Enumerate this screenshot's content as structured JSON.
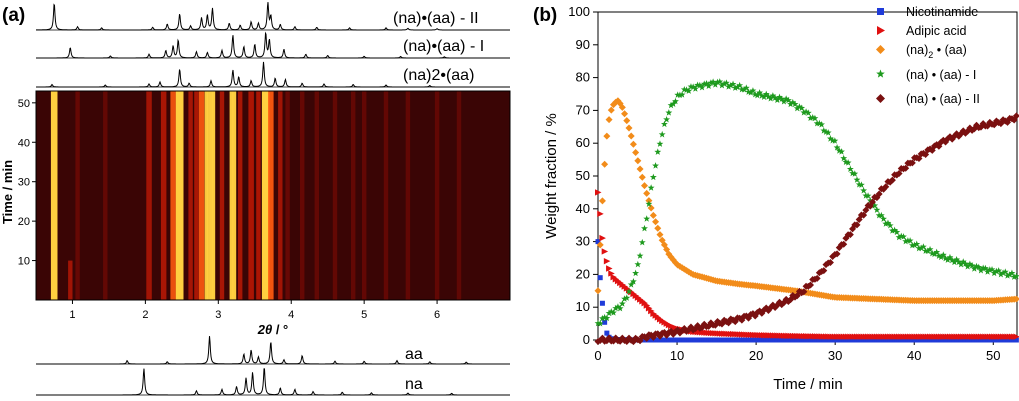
{
  "panel_a": {
    "label": "(a)",
    "top_patterns": [
      {
        "label": "(na)•(aa) - II",
        "peaks": [
          [
            0.75,
            1.0
          ],
          [
            1.07,
            0.12
          ],
          [
            1.4,
            0.08
          ],
          [
            2.1,
            0.1
          ],
          [
            2.3,
            0.22
          ],
          [
            2.47,
            0.6
          ],
          [
            2.62,
            0.15
          ],
          [
            2.77,
            0.45
          ],
          [
            2.85,
            0.55
          ],
          [
            2.92,
            0.8
          ],
          [
            3.15,
            0.25
          ],
          [
            3.3,
            0.18
          ],
          [
            3.45,
            0.3
          ],
          [
            3.55,
            0.25
          ],
          [
            3.68,
            1.0
          ],
          [
            3.72,
            0.5
          ],
          [
            3.85,
            0.2
          ],
          [
            4.05,
            0.12
          ],
          [
            4.35,
            0.1
          ],
          [
            4.8,
            0.08
          ],
          [
            5.3,
            0.08
          ],
          [
            5.6,
            0.06
          ],
          [
            6.0,
            0.05
          ]
        ]
      },
      {
        "label": "(na)•(aa) - I",
        "peaks": [
          [
            0.97,
            0.42
          ],
          [
            1.52,
            0.08
          ],
          [
            2.05,
            0.15
          ],
          [
            2.28,
            0.3
          ],
          [
            2.38,
            0.48
          ],
          [
            2.45,
            0.72
          ],
          [
            2.7,
            0.25
          ],
          [
            2.85,
            0.22
          ],
          [
            3.05,
            0.3
          ],
          [
            3.2,
            0.92
          ],
          [
            3.35,
            0.45
          ],
          [
            3.5,
            0.55
          ],
          [
            3.65,
            1.0
          ],
          [
            3.7,
            0.72
          ],
          [
            3.9,
            0.35
          ],
          [
            4.2,
            0.15
          ],
          [
            4.5,
            0.1
          ],
          [
            5.0,
            0.07
          ],
          [
            5.5,
            0.06
          ],
          [
            6.1,
            0.05
          ]
        ]
      },
      {
        "label": "(na)2•(aa)",
        "peaks": [
          [
            0.72,
            0.1
          ],
          [
            1.45,
            0.08
          ],
          [
            2.05,
            0.12
          ],
          [
            2.2,
            0.2
          ],
          [
            2.47,
            0.72
          ],
          [
            2.6,
            0.15
          ],
          [
            2.9,
            0.25
          ],
          [
            3.2,
            0.68
          ],
          [
            3.28,
            0.4
          ],
          [
            3.45,
            0.25
          ],
          [
            3.62,
            1.0
          ],
          [
            3.78,
            0.35
          ],
          [
            3.92,
            0.3
          ],
          [
            4.15,
            0.15
          ],
          [
            4.45,
            0.12
          ],
          [
            4.85,
            0.1
          ],
          [
            5.3,
            0.08
          ],
          [
            5.9,
            0.06
          ]
        ]
      }
    ],
    "bottom_patterns": [
      {
        "label": "aa",
        "peaks": [
          [
            1.75,
            0.12
          ],
          [
            2.3,
            0.08
          ],
          [
            2.88,
            1.0
          ],
          [
            3.35,
            0.35
          ],
          [
            3.45,
            0.5
          ],
          [
            3.55,
            0.25
          ],
          [
            3.72,
            0.8
          ],
          [
            3.9,
            0.15
          ],
          [
            4.15,
            0.3
          ],
          [
            4.6,
            0.1
          ],
          [
            5.0,
            0.1
          ],
          [
            5.45,
            0.12
          ],
          [
            5.9,
            0.08
          ],
          [
            6.4,
            0.07
          ]
        ]
      },
      {
        "label": "na",
        "peaks": [
          [
            1.98,
            0.95
          ],
          [
            2.7,
            0.15
          ],
          [
            3.05,
            0.2
          ],
          [
            3.25,
            0.3
          ],
          [
            3.38,
            0.6
          ],
          [
            3.47,
            0.8
          ],
          [
            3.63,
            1.0
          ],
          [
            3.85,
            0.25
          ],
          [
            4.05,
            0.2
          ],
          [
            4.3,
            0.12
          ],
          [
            4.7,
            0.1
          ],
          [
            5.1,
            0.08
          ],
          [
            5.6,
            0.07
          ],
          [
            6.2,
            0.06
          ]
        ]
      }
    ],
    "heatmap": {
      "ylabel": "Time / min",
      "xlabel_symbol": "2θ",
      "xlabel_unit": " / °",
      "x_range": [
        0.5,
        7.0
      ],
      "y_range": [
        0,
        53
      ],
      "x_ticks": [
        "1",
        "2",
        "3",
        "4",
        "5",
        "6"
      ],
      "y_ticks": [
        "10",
        "20",
        "30",
        "40",
        "50"
      ],
      "colormap": [
        "#3a0505",
        "#7a0a05",
        "#c41a05",
        "#ff5a10",
        "#ffd040"
      ],
      "bands": [
        {
          "x": 0.75,
          "t0": 0,
          "t1": 53,
          "i": 1.0,
          "w": 0.03
        },
        {
          "x": 0.97,
          "t0": 0,
          "t1": 10,
          "i": 0.45,
          "w": 0.02
        },
        {
          "x": 1.07,
          "t0": 0,
          "t1": 53,
          "i": 0.3,
          "w": 0.02
        },
        {
          "x": 1.45,
          "t0": 0,
          "t1": 53,
          "i": 0.25,
          "w": 0.02
        },
        {
          "x": 2.05,
          "t0": 0,
          "t1": 53,
          "i": 0.45,
          "w": 0.025
        },
        {
          "x": 2.25,
          "t0": 0,
          "t1": 53,
          "i": 0.55,
          "w": 0.025
        },
        {
          "x": 2.38,
          "t0": 0,
          "t1": 53,
          "i": 0.75,
          "w": 0.025
        },
        {
          "x": 2.47,
          "t0": 0,
          "t1": 53,
          "i": 1.0,
          "w": 0.035
        },
        {
          "x": 2.62,
          "t0": 0,
          "t1": 53,
          "i": 0.5,
          "w": 0.02
        },
        {
          "x": 2.7,
          "t0": 0,
          "t1": 53,
          "i": 0.55,
          "w": 0.02
        },
        {
          "x": 2.77,
          "t0": 0,
          "t1": 53,
          "i": 0.8,
          "w": 0.025
        },
        {
          "x": 2.85,
          "t0": 0,
          "t1": 53,
          "i": 0.9,
          "w": 0.025
        },
        {
          "x": 2.92,
          "t0": 0,
          "t1": 53,
          "i": 0.95,
          "w": 0.025
        },
        {
          "x": 3.05,
          "t0": 0,
          "t1": 53,
          "i": 0.55,
          "w": 0.02
        },
        {
          "x": 3.2,
          "t0": 0,
          "t1": 53,
          "i": 0.95,
          "w": 0.03
        },
        {
          "x": 3.3,
          "t0": 0,
          "t1": 53,
          "i": 0.55,
          "w": 0.02
        },
        {
          "x": 3.45,
          "t0": 0,
          "t1": 53,
          "i": 0.6,
          "w": 0.025
        },
        {
          "x": 3.55,
          "t0": 0,
          "t1": 53,
          "i": 0.6,
          "w": 0.02
        },
        {
          "x": 3.65,
          "t0": 0,
          "t1": 53,
          "i": 1.0,
          "w": 0.035
        },
        {
          "x": 3.72,
          "t0": 0,
          "t1": 53,
          "i": 0.85,
          "w": 0.025
        },
        {
          "x": 3.85,
          "t0": 0,
          "t1": 53,
          "i": 0.45,
          "w": 0.02
        },
        {
          "x": 3.95,
          "t0": 0,
          "t1": 53,
          "i": 0.35,
          "w": 0.02
        },
        {
          "x": 4.15,
          "t0": 0,
          "t1": 53,
          "i": 0.3,
          "w": 0.02
        },
        {
          "x": 4.35,
          "t0": 0,
          "t1": 53,
          "i": 0.25,
          "w": 0.02
        },
        {
          "x": 4.6,
          "t0": 0,
          "t1": 53,
          "i": 0.25,
          "w": 0.02
        },
        {
          "x": 4.85,
          "t0": 0,
          "t1": 53,
          "i": 0.25,
          "w": 0.02
        },
        {
          "x": 5.0,
          "t0": 0,
          "t1": 53,
          "i": 0.2,
          "w": 0.02
        },
        {
          "x": 5.3,
          "t0": 0,
          "t1": 53,
          "i": 0.2,
          "w": 0.02
        },
        {
          "x": 5.6,
          "t0": 0,
          "t1": 53,
          "i": 0.18,
          "w": 0.02
        },
        {
          "x": 6.0,
          "t0": 0,
          "t1": 53,
          "i": 0.15,
          "w": 0.02
        },
        {
          "x": 6.3,
          "t0": 0,
          "t1": 53,
          "i": 0.12,
          "w": 0.02
        }
      ]
    }
  },
  "chart_data": {
    "type": "scatter",
    "label": "(b)",
    "xlabel": "Time / min",
    "ylabel": "Weight fraction / %",
    "xlim": [
      0,
      53
    ],
    "ylim": [
      0,
      100
    ],
    "x_ticks": [
      0,
      10,
      20,
      30,
      40,
      50
    ],
    "y_ticks": [
      0,
      10,
      20,
      30,
      40,
      50,
      60,
      70,
      80,
      90,
      100
    ],
    "legend_position": "top-right",
    "series": [
      {
        "name": "Nicotinamide",
        "marker": "square",
        "color": "#1f3bd9",
        "x": [
          0,
          0.2,
          0.4,
          0.6,
          0.8,
          1.0,
          1.2,
          1.5,
          2,
          3,
          5,
          8,
          12,
          20,
          30,
          40,
          53
        ],
        "y": [
          30,
          21,
          16,
          10,
          6,
          3,
          1.5,
          0.5,
          0.2,
          0.1,
          0,
          0,
          0,
          0,
          0,
          0,
          0
        ]
      },
      {
        "name": "Adipic acid",
        "marker": "triangle",
        "color": "#e01010",
        "x": [
          0,
          0.3,
          0.6,
          1,
          1.5,
          2,
          3,
          4,
          5,
          6,
          7,
          8,
          9,
          10,
          12,
          15,
          20,
          25,
          30,
          40,
          53
        ],
        "y": [
          45,
          38,
          30,
          25,
          21,
          19,
          17,
          15,
          13,
          11,
          8,
          6,
          4.5,
          3.5,
          2.5,
          2,
          1.5,
          1.2,
          1,
          1,
          1
        ]
      },
      {
        "name": "(na)2 • (aa)",
        "marker": "diamond",
        "color": "#f28c1a",
        "x": [
          0,
          0.5,
          1,
          1.5,
          2,
          2.5,
          3,
          3.5,
          4,
          5,
          6,
          7,
          8,
          9,
          10,
          12,
          15,
          18,
          20,
          25,
          30,
          35,
          40,
          45,
          50,
          53
        ],
        "y": [
          15,
          40,
          60,
          69,
          72,
          73,
          71.5,
          68,
          64,
          55,
          46,
          38,
          31,
          26,
          23,
          20,
          18,
          17,
          16.5,
          15,
          13,
          12.5,
          12,
          12,
          12,
          12.5
        ]
      },
      {
        "name": "(na) • (aa) - I",
        "marker": "star",
        "color": "#1e9a1e",
        "x": [
          0,
          1,
          2,
          3,
          4,
          5,
          6,
          7,
          8,
          9,
          10,
          11,
          12,
          13,
          14,
          15,
          16,
          18,
          20,
          22,
          24,
          26,
          28,
          30,
          32,
          34,
          36,
          38,
          40,
          42,
          44,
          46,
          48,
          50,
          52,
          53
        ],
        "y": [
          5,
          7,
          9,
          10.5,
          15,
          22,
          35,
          50,
          62,
          70,
          74,
          76,
          77,
          77.5,
          78,
          78.5,
          78,
          77,
          75,
          74,
          73,
          70,
          66,
          60,
          52,
          44,
          37,
          32,
          29,
          27,
          25,
          23.5,
          22,
          21,
          20,
          19.5
        ]
      },
      {
        "name": "(na) • (aa) - II",
        "marker": "diamond",
        "color": "#7a1010",
        "x": [
          0,
          3,
          5,
          6,
          8,
          10,
          12,
          14,
          16,
          18,
          20,
          22,
          24,
          26,
          28,
          30,
          32,
          34,
          36,
          38,
          40,
          42,
          44,
          46,
          48,
          50,
          52,
          53
        ],
        "y": [
          0,
          0,
          0,
          1,
          1.8,
          2.5,
          3.5,
          4.5,
          5.5,
          6.5,
          8,
          10,
          12,
          15,
          20,
          26,
          33,
          40,
          46,
          51,
          55,
          58,
          61,
          63,
          65,
          66,
          67,
          68
        ]
      }
    ]
  }
}
